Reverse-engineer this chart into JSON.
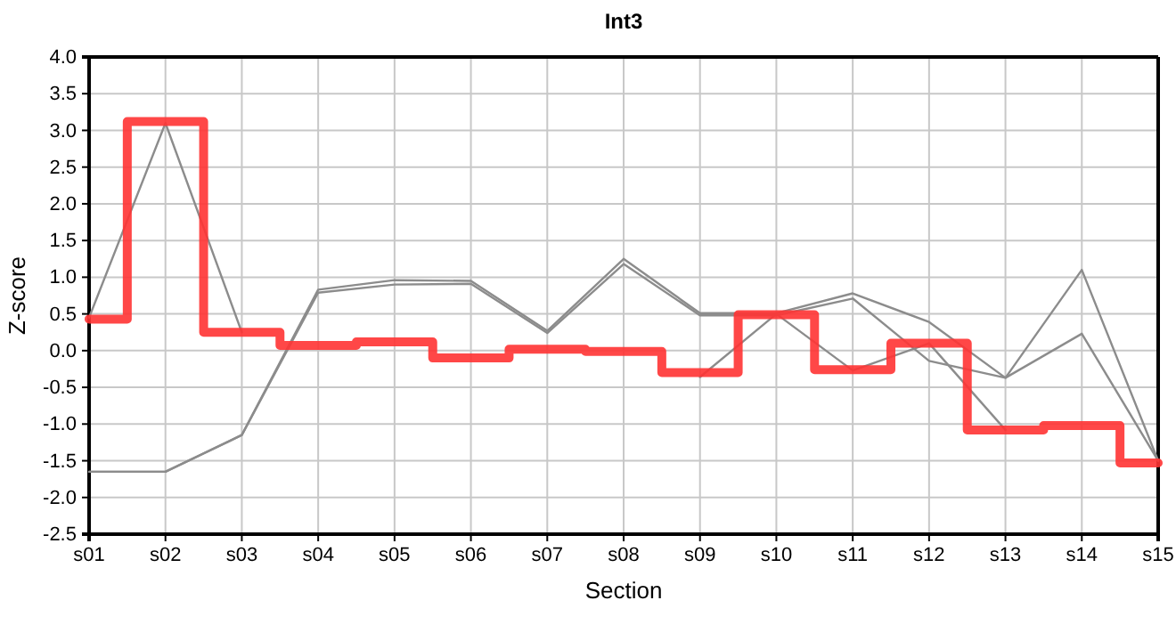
{
  "chart_data": {
    "type": "line",
    "title": "Int3",
    "xlabel": "Section",
    "ylabel": "Z-score",
    "categories": [
      "s01",
      "s02",
      "s03",
      "s04",
      "s05",
      "s06",
      "s07",
      "s08",
      "s09",
      "s10",
      "s11",
      "s12",
      "s13",
      "s14",
      "s15"
    ],
    "ylim": [
      -2.5,
      4.0
    ],
    "yticks": [
      {
        "value": -2.5,
        "label": "-2.5"
      },
      {
        "value": -2,
        "label": "-2.0"
      },
      {
        "value": -1.5,
        "label": "-1.5"
      },
      {
        "value": -1,
        "label": "-1.0"
      },
      {
        "value": -0.5,
        "label": "-0.5"
      },
      {
        "value": 0,
        "label": "0.0"
      },
      {
        "value": 0.5,
        "label": "0.5"
      },
      {
        "value": 1,
        "label": "1.0"
      },
      {
        "value": 1.5,
        "label": "1.5"
      },
      {
        "value": 2,
        "label": "2.0"
      },
      {
        "value": 2.5,
        "label": "2.5"
      },
      {
        "value": 3,
        "label": "3.0"
      },
      {
        "value": 3.5,
        "label": "3.5"
      },
      {
        "value": 4,
        "label": "4.0"
      }
    ],
    "grid": true,
    "marker": "none",
    "line_style": "solid",
    "series": [
      {
        "color": "#8c8c8c",
        "values": [
          0.45,
          3.1,
          0.25,
          null,
          null,
          null,
          null,
          null,
          -0.36,
          0.5,
          -0.27,
          0.1,
          -1.08,
          null,
          null
        ]
      },
      {
        "color": "#8c8c8c",
        "values": [
          -1.65,
          -1.65,
          -1.15,
          0.83,
          0.96,
          0.95,
          0.27,
          1.25,
          0.51,
          0.51,
          0.78,
          0.39,
          -0.37,
          1.1,
          -1.5
        ]
      },
      {
        "color": "#8c8c8c",
        "values": [
          -1.65,
          -1.65,
          -1.15,
          0.79,
          0.9,
          0.91,
          0.24,
          1.18,
          0.48,
          0.48,
          0.71,
          -0.14,
          -0.37,
          0.23,
          -1.5
        ]
      },
      {
        "type": "step",
        "color": "#ff3333",
        "values": [
          0.43,
          3.12,
          0.25,
          0.07,
          0.12,
          -0.1,
          0.02,
          -0.01,
          -0.3,
          0.49,
          -0.26,
          0.1,
          -1.08,
          -1.02,
          -1.53
        ]
      }
    ]
  }
}
